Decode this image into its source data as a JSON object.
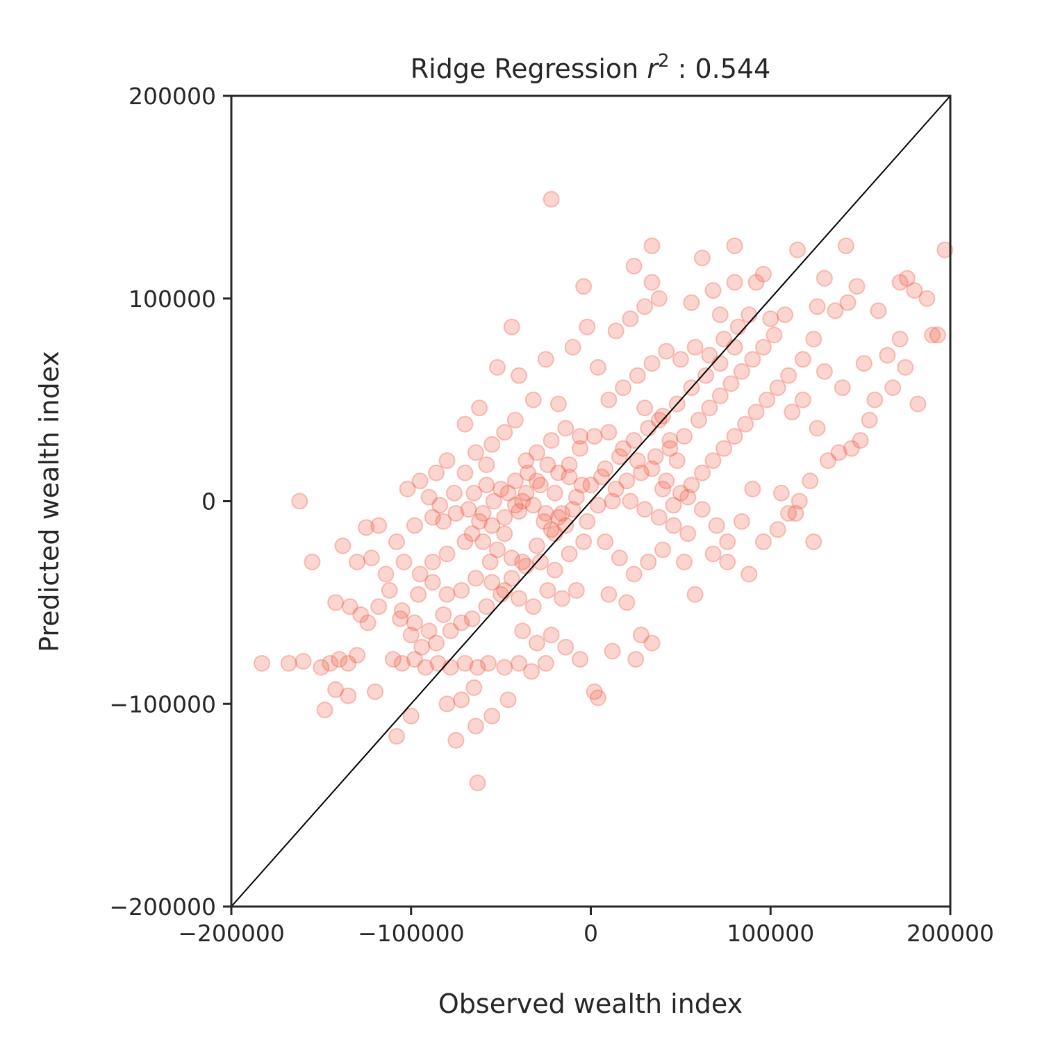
{
  "chart_data": {
    "type": "scatter",
    "title": {
      "prefix": "Ridge Regression ",
      "var": "r",
      "sup": "2",
      "suffix": " : 0.544"
    },
    "xlabel": "Observed wealth index",
    "ylabel": "Predicted wealth index",
    "xlim": [
      -200000,
      200000
    ],
    "ylim": [
      -200000,
      200000
    ],
    "xticks": [
      -200000,
      -100000,
      0,
      100000,
      200000
    ],
    "yticks": [
      -200000,
      -100000,
      0,
      100000,
      200000
    ],
    "xtick_labels": [
      "−200000",
      "−100000",
      "0",
      "100000",
      "200000"
    ],
    "ytick_labels": [
      "−200000",
      "−100000",
      "0",
      "100000",
      "200000"
    ],
    "grid": false,
    "reference_line": {
      "from": [
        -200000,
        -200000
      ],
      "to": [
        200000,
        200000
      ],
      "color": "#000000"
    },
    "marker_color": "#ee5a45",
    "points": [
      [
        -22000,
        149000
      ],
      [
        -162000,
        0
      ],
      [
        -155000,
        -30000
      ],
      [
        -183000,
        -80000
      ],
      [
        -168000,
        -80000
      ],
      [
        -160000,
        -79000
      ],
      [
        -150000,
        -82000
      ],
      [
        -145000,
        -80000
      ],
      [
        -140000,
        -78000
      ],
      [
        -135000,
        -80000
      ],
      [
        -130000,
        -76000
      ],
      [
        -148000,
        -103000
      ],
      [
        -142000,
        -93000
      ],
      [
        -135000,
        -96000
      ],
      [
        -120000,
        -94000
      ],
      [
        -108000,
        -116000
      ],
      [
        -100000,
        -106000
      ],
      [
        -138000,
        -22000
      ],
      [
        -125000,
        -13000
      ],
      [
        -118000,
        -12000
      ],
      [
        -108000,
        -20000
      ],
      [
        -104000,
        -30000
      ],
      [
        -95000,
        -36000
      ],
      [
        -88000,
        -30000
      ],
      [
        -80000,
        -26000
      ],
      [
        -70000,
        -20000
      ],
      [
        -105000,
        -54000
      ],
      [
        -98000,
        -60000
      ],
      [
        -90000,
        -64000
      ],
      [
        -82000,
        -56000
      ],
      [
        -72000,
        -60000
      ],
      [
        -110000,
        -78000
      ],
      [
        -105000,
        -80000
      ],
      [
        -98000,
        -78000
      ],
      [
        -92000,
        -82000
      ],
      [
        -85000,
        -80000
      ],
      [
        -78000,
        -82000
      ],
      [
        -70000,
        -80000
      ],
      [
        -63000,
        -82000
      ],
      [
        -57000,
        -80000
      ],
      [
        -48000,
        -82000
      ],
      [
        -40000,
        -80000
      ],
      [
        -33000,
        -84000
      ],
      [
        -25000,
        -80000
      ],
      [
        -80000,
        -100000
      ],
      [
        -72000,
        -98000
      ],
      [
        -65000,
        -92000
      ],
      [
        -75000,
        -118000
      ],
      [
        -64000,
        -111000
      ],
      [
        -55000,
        -106000
      ],
      [
        -46000,
        -98000
      ],
      [
        -63000,
        -139000
      ],
      [
        -95000,
        10000
      ],
      [
        -102000,
        6000
      ],
      [
        -86000,
        14000
      ],
      [
        -80000,
        20000
      ],
      [
        -70000,
        14000
      ],
      [
        -88000,
        -8000
      ],
      [
        -82000,
        -10000
      ],
      [
        -75000,
        -6000
      ],
      [
        -68000,
        -4000
      ],
      [
        -62000,
        -10000
      ],
      [
        -55000,
        -12000
      ],
      [
        -48000,
        -8000
      ],
      [
        -40000,
        -5000
      ],
      [
        -32000,
        -2000
      ],
      [
        -25000,
        -6000
      ],
      [
        -18000,
        -8000
      ],
      [
        -10000,
        -4000
      ],
      [
        -65000,
        4000
      ],
      [
        -58000,
        8000
      ],
      [
        -50000,
        6000
      ],
      [
        -42000,
        10000
      ],
      [
        -35000,
        14000
      ],
      [
        -28000,
        8000
      ],
      [
        -20000,
        4000
      ],
      [
        -12000,
        12000
      ],
      [
        -5000,
        8000
      ],
      [
        -60000,
        -20000
      ],
      [
        -52000,
        -24000
      ],
      [
        -44000,
        -28000
      ],
      [
        -36000,
        -32000
      ],
      [
        -28000,
        -30000
      ],
      [
        -20000,
        -34000
      ],
      [
        -12000,
        -26000
      ],
      [
        -4000,
        -20000
      ],
      [
        -55000,
        -40000
      ],
      [
        -48000,
        -44000
      ],
      [
        -40000,
        -48000
      ],
      [
        -32000,
        -52000
      ],
      [
        -24000,
        -44000
      ],
      [
        -16000,
        -48000
      ],
      [
        -8000,
        -44000
      ],
      [
        -38000,
        -64000
      ],
      [
        -30000,
        -70000
      ],
      [
        -22000,
        -66000
      ],
      [
        -14000,
        -72000
      ],
      [
        -6000,
        -78000
      ],
      [
        4000,
        -97000
      ],
      [
        2000,
        -94000
      ],
      [
        -70000,
        38000
      ],
      [
        -62000,
        46000
      ],
      [
        -55000,
        28000
      ],
      [
        -48000,
        34000
      ],
      [
        -42000,
        40000
      ],
      [
        -36000,
        20000
      ],
      [
        -30000,
        24000
      ],
      [
        -22000,
        30000
      ],
      [
        -14000,
        36000
      ],
      [
        -6000,
        32000
      ],
      [
        -52000,
        66000
      ],
      [
        -44000,
        86000
      ],
      [
        -40000,
        62000
      ],
      [
        -32000,
        50000
      ],
      [
        -25000,
        70000
      ],
      [
        -18000,
        48000
      ],
      [
        -10000,
        76000
      ],
      [
        -2000,
        86000
      ],
      [
        -4000,
        106000
      ],
      [
        4000,
        66000
      ],
      [
        2000,
        32000
      ],
      [
        10000,
        34000
      ],
      [
        18000,
        26000
      ],
      [
        26000,
        20000
      ],
      [
        34000,
        16000
      ],
      [
        42000,
        10000
      ],
      [
        50000,
        4000
      ],
      [
        6000,
        12000
      ],
      [
        14000,
        6000
      ],
      [
        22000,
        0
      ],
      [
        30000,
        -4000
      ],
      [
        38000,
        -8000
      ],
      [
        46000,
        -12000
      ],
      [
        54000,
        -16000
      ],
      [
        8000,
        -20000
      ],
      [
        16000,
        -28000
      ],
      [
        24000,
        -36000
      ],
      [
        32000,
        -30000
      ],
      [
        40000,
        -24000
      ],
      [
        10000,
        -46000
      ],
      [
        20000,
        -50000
      ],
      [
        28000,
        -66000
      ],
      [
        34000,
        -70000
      ],
      [
        25000,
        -78000
      ],
      [
        12000,
        -74000
      ],
      [
        10000,
        50000
      ],
      [
        18000,
        56000
      ],
      [
        26000,
        62000
      ],
      [
        34000,
        68000
      ],
      [
        42000,
        74000
      ],
      [
        50000,
        70000
      ],
      [
        58000,
        76000
      ],
      [
        66000,
        72000
      ],
      [
        74000,
        80000
      ],
      [
        82000,
        86000
      ],
      [
        14000,
        84000
      ],
      [
        22000,
        90000
      ],
      [
        30000,
        96000
      ],
      [
        38000,
        100000
      ],
      [
        24000,
        116000
      ],
      [
        34000,
        126000
      ],
      [
        34000,
        108000
      ],
      [
        56000,
        98000
      ],
      [
        62000,
        120000
      ],
      [
        68000,
        104000
      ],
      [
        72000,
        92000
      ],
      [
        80000,
        108000
      ],
      [
        80000,
        126000
      ],
      [
        92000,
        108000
      ],
      [
        96000,
        112000
      ],
      [
        100000,
        90000
      ],
      [
        108000,
        92000
      ],
      [
        115000,
        124000
      ],
      [
        126000,
        96000
      ],
      [
        130000,
        110000
      ],
      [
        136000,
        94000
      ],
      [
        143000,
        98000
      ],
      [
        142000,
        126000
      ],
      [
        148000,
        106000
      ],
      [
        160000,
        94000
      ],
      [
        172000,
        108000
      ],
      [
        176000,
        110000
      ],
      [
        180000,
        104000
      ],
      [
        187000,
        100000
      ],
      [
        197000,
        124000
      ],
      [
        190000,
        82000
      ],
      [
        193000,
        82000
      ],
      [
        175000,
        66000
      ],
      [
        182000,
        48000
      ],
      [
        165000,
        72000
      ],
      [
        158000,
        50000
      ],
      [
        155000,
        40000
      ],
      [
        150000,
        30000
      ],
      [
        145000,
        26000
      ],
      [
        138000,
        24000
      ],
      [
        172000,
        80000
      ],
      [
        168000,
        56000
      ],
      [
        152000,
        68000
      ],
      [
        140000,
        56000
      ],
      [
        130000,
        64000
      ],
      [
        124000,
        80000
      ],
      [
        118000,
        70000
      ],
      [
        110000,
        62000
      ],
      [
        104000,
        56000
      ],
      [
        98000,
        50000
      ],
      [
        92000,
        44000
      ],
      [
        86000,
        38000
      ],
      [
        80000,
        32000
      ],
      [
        74000,
        26000
      ],
      [
        68000,
        20000
      ],
      [
        62000,
        14000
      ],
      [
        56000,
        8000
      ],
      [
        48000,
        20000
      ],
      [
        44000,
        30000
      ],
      [
        38000,
        40000
      ],
      [
        30000,
        46000
      ],
      [
        60000,
        40000
      ],
      [
        66000,
        46000
      ],
      [
        72000,
        52000
      ],
      [
        78000,
        58000
      ],
      [
        84000,
        64000
      ],
      [
        90000,
        70000
      ],
      [
        96000,
        76000
      ],
      [
        102000,
        82000
      ],
      [
        88000,
        92000
      ],
      [
        112000,
        44000
      ],
      [
        118000,
        50000
      ],
      [
        126000,
        36000
      ],
      [
        132000,
        20000
      ],
      [
        122000,
        10000
      ],
      [
        116000,
        0
      ],
      [
        110000,
        -6000
      ],
      [
        104000,
        -14000
      ],
      [
        96000,
        -20000
      ],
      [
        88000,
        -36000
      ],
      [
        76000,
        -30000
      ],
      [
        68000,
        -26000
      ],
      [
        58000,
        -46000
      ],
      [
        52000,
        -30000
      ],
      [
        124000,
        -20000
      ],
      [
        114000,
        -6000
      ],
      [
        106000,
        4000
      ],
      [
        90000,
        6000
      ],
      [
        84000,
        -10000
      ],
      [
        76000,
        -20000
      ],
      [
        70000,
        -12000
      ],
      [
        62000,
        -4000
      ],
      [
        54000,
        2000
      ],
      [
        46000,
        -2000
      ],
      [
        40000,
        6000
      ],
      [
        -6000,
        26000
      ],
      [
        -12000,
        18000
      ],
      [
        -18000,
        14000
      ],
      [
        -24000,
        18000
      ],
      [
        -30000,
        10000
      ],
      [
        -36000,
        4000
      ],
      [
        -42000,
        -2000
      ],
      [
        -48000,
        -16000
      ],
      [
        -56000,
        -30000
      ],
      [
        -64000,
        -38000
      ],
      [
        -72000,
        -44000
      ],
      [
        -80000,
        -46000
      ],
      [
        -88000,
        -40000
      ],
      [
        -96000,
        -46000
      ],
      [
        -112000,
        -44000
      ],
      [
        -118000,
        -52000
      ],
      [
        -124000,
        -60000
      ],
      [
        -128000,
        -56000
      ],
      [
        -134000,
        -52000
      ],
      [
        -142000,
        -50000
      ],
      [
        -130000,
        -30000
      ],
      [
        -122000,
        -28000
      ],
      [
        -114000,
        -36000
      ],
      [
        -106000,
        -58000
      ],
      [
        -100000,
        -66000
      ],
      [
        -94000,
        -72000
      ],
      [
        -86000,
        -70000
      ],
      [
        -78000,
        -64000
      ],
      [
        -66000,
        -58000
      ],
      [
        -58000,
        -52000
      ],
      [
        -50000,
        -46000
      ],
      [
        -44000,
        -38000
      ],
      [
        -38000,
        -30000
      ],
      [
        -30000,
        -22000
      ],
      [
        -22000,
        -14000
      ],
      [
        -16000,
        -6000
      ],
      [
        -8000,
        2000
      ],
      [
        0,
        8000
      ],
      [
        8000,
        16000
      ],
      [
        16000,
        22000
      ],
      [
        24000,
        30000
      ],
      [
        32000,
        36000
      ],
      [
        40000,
        42000
      ],
      [
        48000,
        48000
      ],
      [
        56000,
        56000
      ],
      [
        64000,
        62000
      ],
      [
        72000,
        68000
      ],
      [
        80000,
        76000
      ],
      [
        -64000,
        24000
      ],
      [
        -58000,
        18000
      ],
      [
        -76000,
        4000
      ],
      [
        -84000,
        -2000
      ],
      [
        -90000,
        2000
      ],
      [
        -98000,
        -12000
      ],
      [
        -66000,
        -16000
      ],
      [
        -60000,
        -6000
      ],
      [
        -54000,
        0
      ],
      [
        -46000,
        4000
      ],
      [
        -38000,
        0
      ],
      [
        -26000,
        -10000
      ],
      [
        -20000,
        -16000
      ],
      [
        -14000,
        -12000
      ],
      [
        -2000,
        -10000
      ],
      [
        4000,
        -2000
      ],
      [
        12000,
        0
      ],
      [
        20000,
        10000
      ],
      [
        28000,
        14000
      ],
      [
        36000,
        22000
      ],
      [
        44000,
        26000
      ],
      [
        52000,
        32000
      ]
    ]
  }
}
